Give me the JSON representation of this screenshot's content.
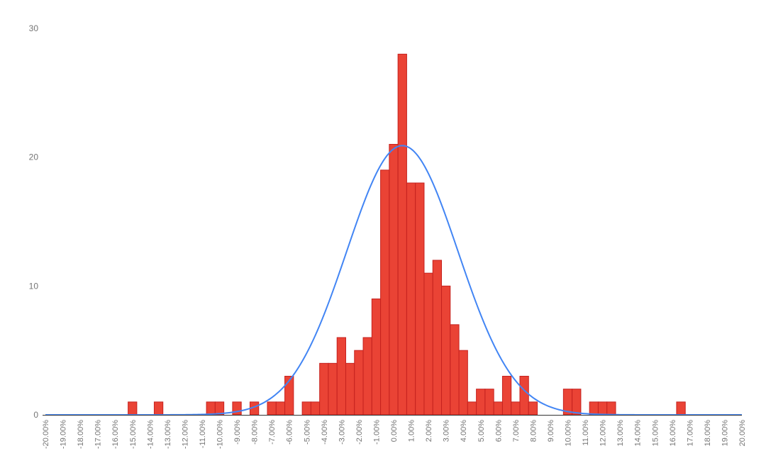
{
  "chart_data": {
    "type": "bar",
    "title": "",
    "xlabel": "",
    "ylabel": "",
    "xlim": [
      -20,
      20
    ],
    "ylim": [
      0,
      30
    ],
    "bin_width": 0.5,
    "y_ticks": [
      "0",
      "10",
      "20",
      "30"
    ],
    "x_ticks": [
      "-20.00%",
      "-19.00%",
      "-18.00%",
      "-17.00%",
      "-16.00%",
      "-15.00%",
      "-14.00%",
      "-13.00%",
      "-12.00%",
      "-11.00%",
      "-10.00%",
      "-9.00%",
      "-8.00%",
      "-7.00%",
      "-6.00%",
      "-5.00%",
      "-4.00%",
      "-3.00%",
      "-2.00%",
      "-1.00%",
      "0.00%",
      "1.00%",
      "2.00%",
      "3.00%",
      "4.00%",
      "5.00%",
      "6.00%",
      "7.00%",
      "8.00%",
      "9.00%",
      "10.00%",
      "11.00%",
      "12.00%",
      "13.00%",
      "14.00%",
      "15.00%",
      "16.00%",
      "17.00%",
      "18.00%",
      "19.00%",
      "20.00%"
    ],
    "grid": false,
    "legend": "none",
    "series": [
      {
        "kind": "histogram",
        "color": "#ea4335",
        "edge_color": "#c5221f",
        "bins": [
          {
            "x": -15.0,
            "count": 1
          },
          {
            "x": -13.5,
            "count": 1
          },
          {
            "x": -10.5,
            "count": 1
          },
          {
            "x": -10.0,
            "count": 1
          },
          {
            "x": -9.0,
            "count": 1
          },
          {
            "x": -8.0,
            "count": 1
          },
          {
            "x": -7.0,
            "count": 1
          },
          {
            "x": -6.5,
            "count": 1
          },
          {
            "x": -6.0,
            "count": 3
          },
          {
            "x": -5.0,
            "count": 1
          },
          {
            "x": -4.5,
            "count": 1
          },
          {
            "x": -4.0,
            "count": 4
          },
          {
            "x": -3.5,
            "count": 4
          },
          {
            "x": -3.0,
            "count": 6
          },
          {
            "x": -2.5,
            "count": 4
          },
          {
            "x": -2.0,
            "count": 5
          },
          {
            "x": -1.5,
            "count": 6
          },
          {
            "x": -1.0,
            "count": 9
          },
          {
            "x": -0.5,
            "count": 19
          },
          {
            "x": 0.0,
            "count": 21
          },
          {
            "x": 0.5,
            "count": 28
          },
          {
            "x": 1.0,
            "count": 18
          },
          {
            "x": 1.5,
            "count": 18
          },
          {
            "x": 2.0,
            "count": 11
          },
          {
            "x": 2.5,
            "count": 12
          },
          {
            "x": 3.0,
            "count": 10
          },
          {
            "x": 3.5,
            "count": 7
          },
          {
            "x": 4.0,
            "count": 5
          },
          {
            "x": 4.5,
            "count": 1
          },
          {
            "x": 5.0,
            "count": 2
          },
          {
            "x": 5.5,
            "count": 2
          },
          {
            "x": 6.0,
            "count": 1
          },
          {
            "x": 6.5,
            "count": 3
          },
          {
            "x": 7.0,
            "count": 1
          },
          {
            "x": 7.5,
            "count": 3
          },
          {
            "x": 8.0,
            "count": 1
          },
          {
            "x": 10.0,
            "count": 2
          },
          {
            "x": 10.5,
            "count": 2
          },
          {
            "x": 11.5,
            "count": 1
          },
          {
            "x": 12.0,
            "count": 1
          },
          {
            "x": 12.5,
            "count": 1
          },
          {
            "x": 16.5,
            "count": 1
          }
        ]
      },
      {
        "kind": "normal-curve",
        "color": "#4285f4",
        "mean": 0.5,
        "std": 3.2,
        "peak": 20.9
      }
    ]
  }
}
